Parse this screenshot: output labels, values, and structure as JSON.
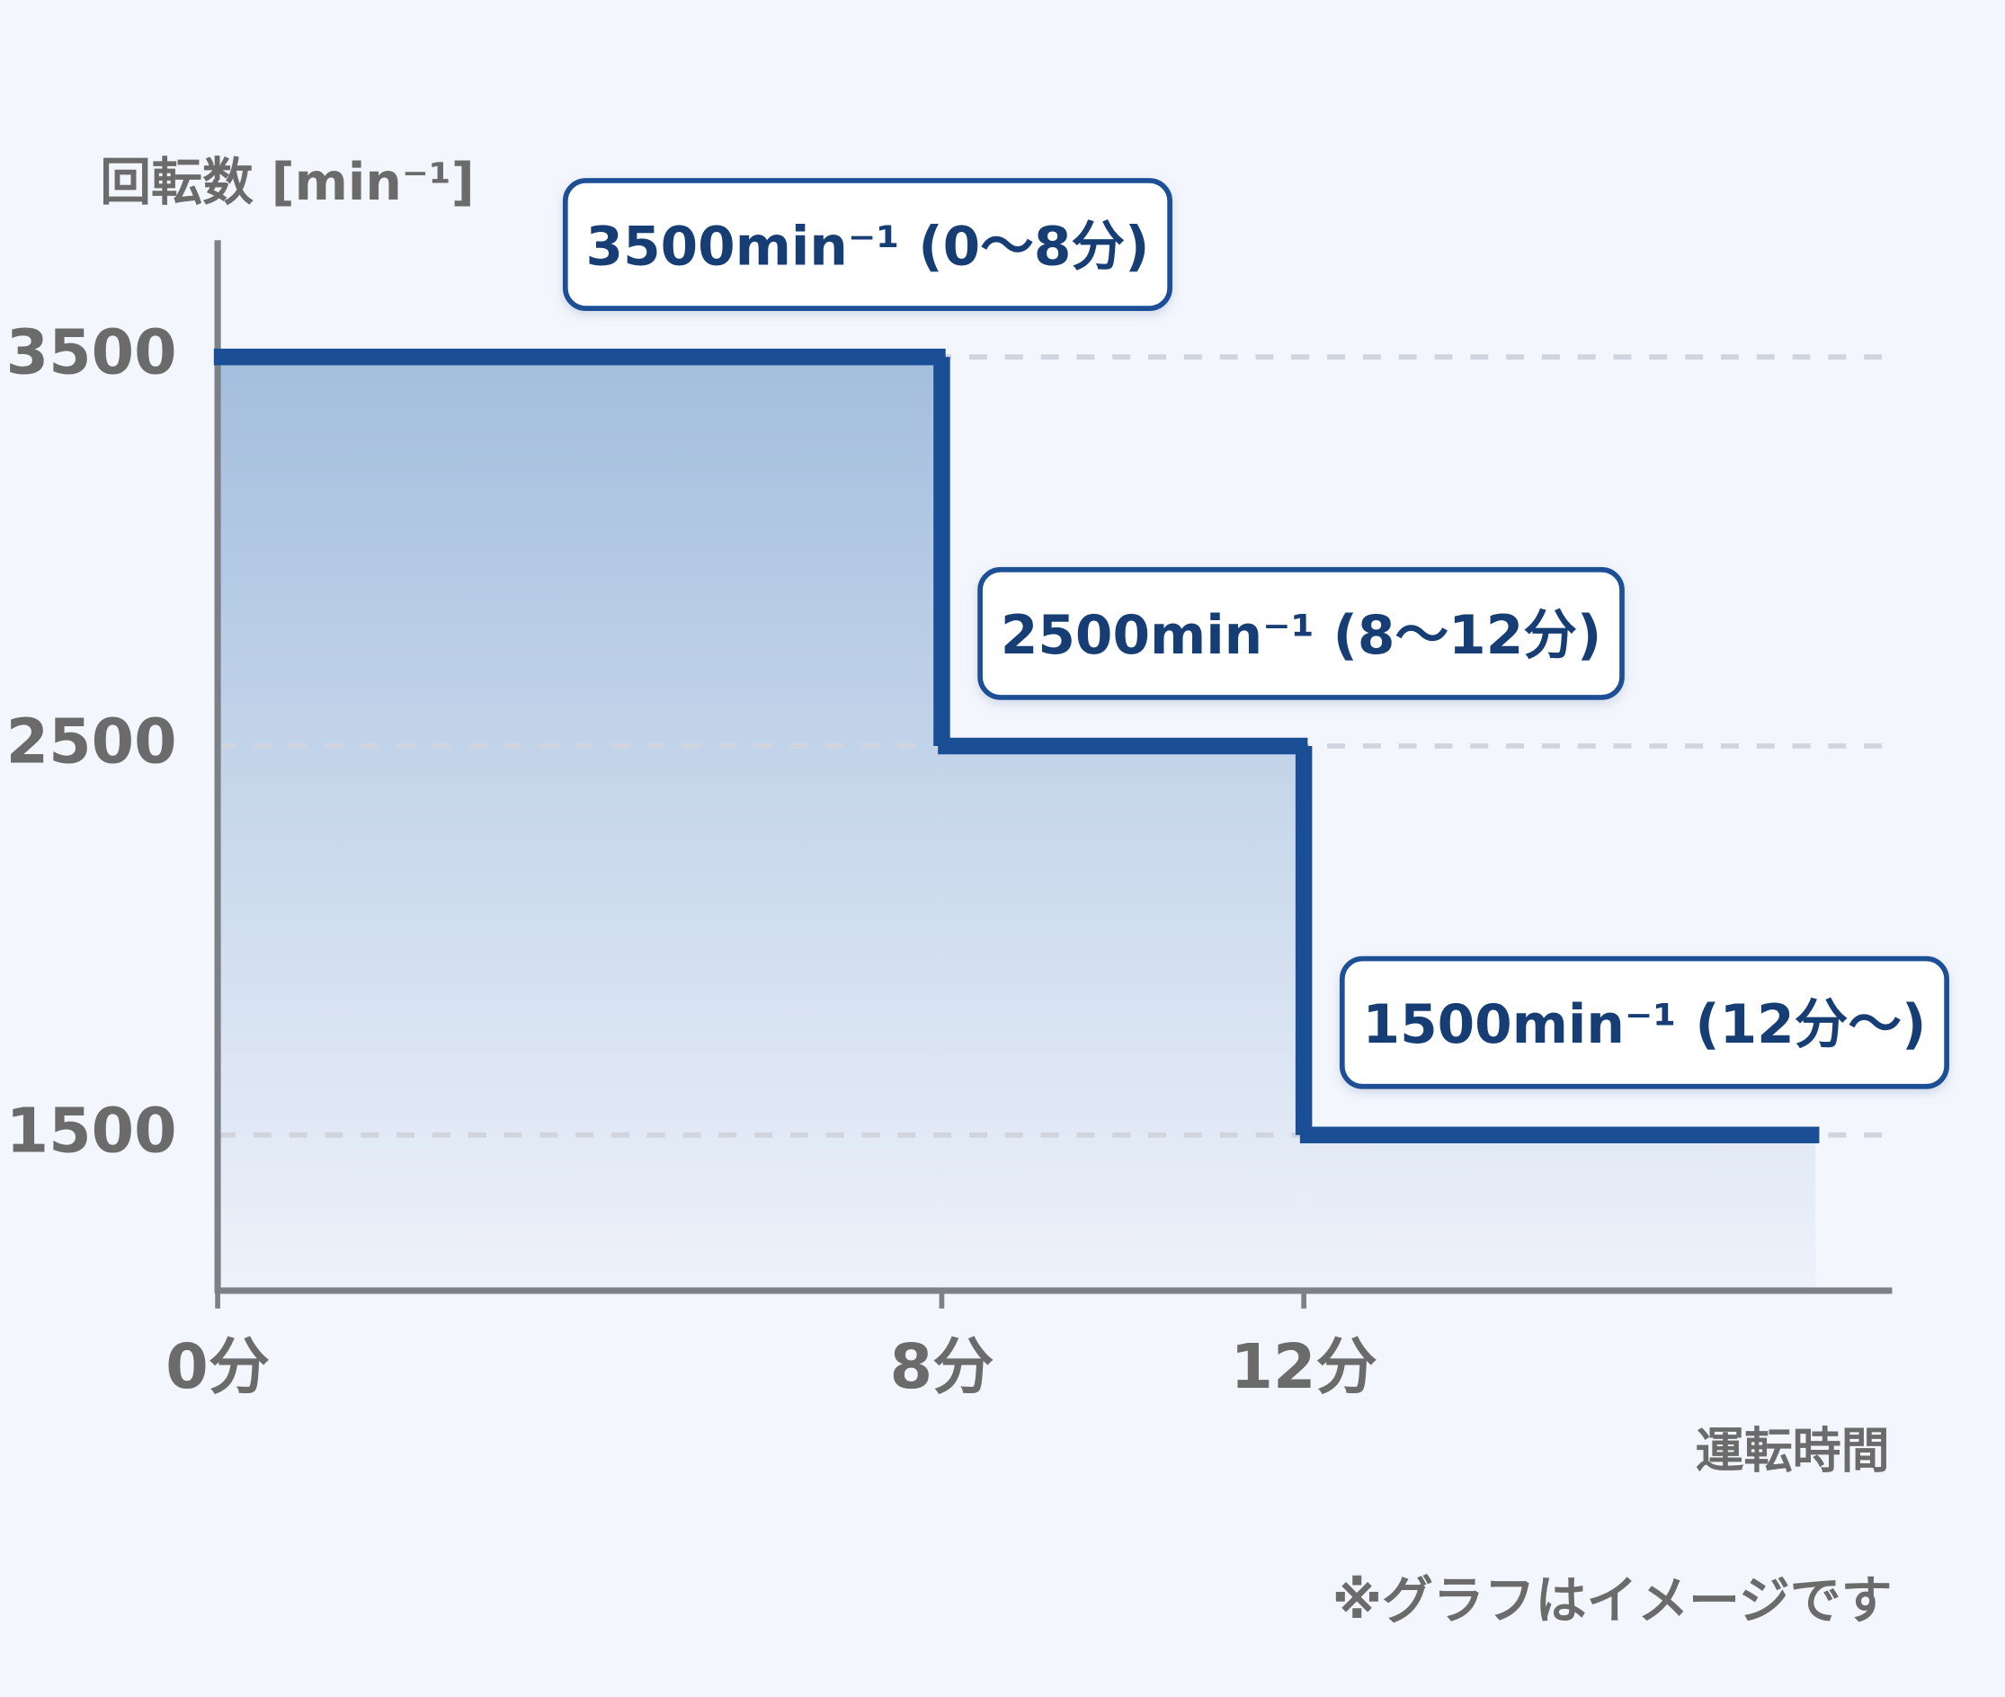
{
  "chart_data": {
    "type": "step",
    "y_axis_label": "回転数 [min⁻¹]",
    "x_axis_label": "運転時間",
    "note": "※グラフはイメージです",
    "x": [
      0,
      8,
      12
    ],
    "values": [
      3500,
      2500,
      1500
    ],
    "annotations": [
      "3500min⁻¹ (0〜8分)",
      "2500min⁻¹ (8〜12分)",
      "1500min⁻¹ (12分〜)"
    ],
    "color": "#1a4f96",
    "xlim": [
      0,
      18.5
    ],
    "xticks": [
      {
        "value": 0,
        "label": "0分"
      },
      {
        "value": 8,
        "label": "8分"
      },
      {
        "value": 12,
        "label": "12分"
      }
    ],
    "ylim": [
      1100,
      3800
    ],
    "yticks": [
      1500,
      2500,
      3500
    ],
    "grid": true
  }
}
